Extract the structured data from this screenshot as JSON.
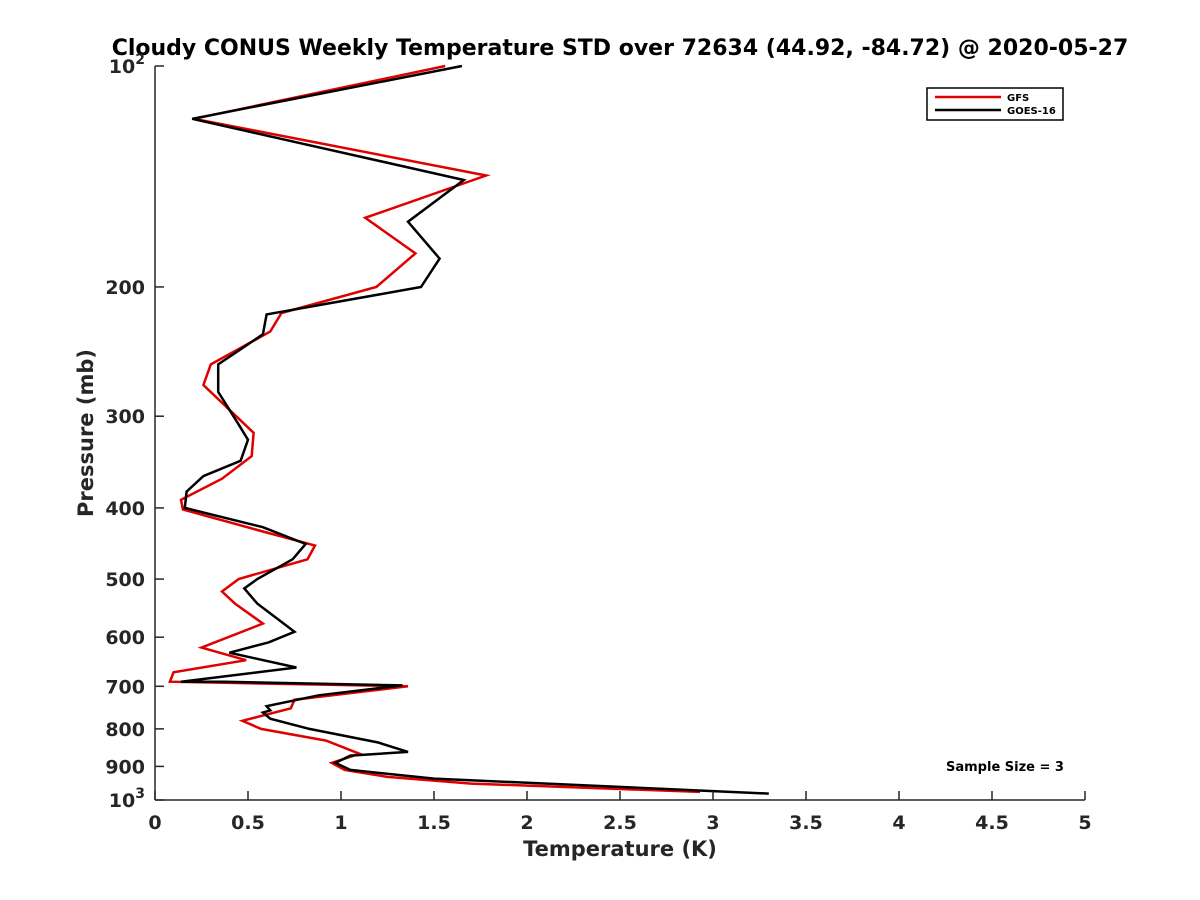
{
  "chart_data": {
    "type": "line",
    "title": "Cloudy CONUS Weekly Temperature STD over 72634 (44.92, -84.72) @ 2020-05-27",
    "xlabel": "Temperature (K)",
    "ylabel": "Pressure (mb)",
    "xlim": [
      0,
      5
    ],
    "ylim": [
      100,
      1000
    ],
    "y_scale": "log",
    "y_reversed": true,
    "xticks": [
      0,
      0.5,
      1,
      1.5,
      2,
      2.5,
      3,
      3.5,
      4,
      4.5,
      5
    ],
    "xtick_labels": [
      "0",
      "0.5",
      "1",
      "1.5",
      "2",
      "2.5",
      "3",
      "3.5",
      "4",
      "4.5",
      "5"
    ],
    "yticks": [
      {
        "value": 100,
        "base": "10",
        "exp": "2"
      },
      {
        "value": 200,
        "label": "200"
      },
      {
        "value": 300,
        "label": "300"
      },
      {
        "value": 400,
        "label": "400"
      },
      {
        "value": 500,
        "label": "500"
      },
      {
        "value": 600,
        "label": "600"
      },
      {
        "value": 700,
        "label": "700"
      },
      {
        "value": 800,
        "label": "800"
      },
      {
        "value": 900,
        "label": "900"
      },
      {
        "value": 1000,
        "base": "10",
        "exp": "3"
      }
    ],
    "legend_position": "top-right",
    "annotation": "Sample Size = 3",
    "series": [
      {
        "name": "GFS",
        "color": "#e00000",
        "x": [
          1.56,
          0.21,
          1.78,
          1.13,
          1.4,
          1.19,
          0.68,
          0.62,
          0.3,
          0.26,
          0.53,
          0.52,
          0.36,
          0.14,
          0.15,
          0.57,
          0.86,
          0.82,
          0.45,
          0.36,
          0.43,
          0.58,
          0.25,
          0.49,
          0.1,
          0.08,
          1.36,
          0.75,
          0.73,
          0.47,
          0.57,
          0.92,
          1.1,
          0.95,
          1.02,
          1.25,
          1.7,
          2.93
        ],
        "y": [
          100,
          118,
          141,
          161,
          180,
          200,
          217,
          230,
          255,
          272,
          316,
          340,
          365,
          390,
          402,
          430,
          450,
          470,
          500,
          520,
          540,
          575,
          620,
          645,
          670,
          690,
          700,
          730,
          750,
          780,
          800,
          830,
          865,
          890,
          910,
          930,
          950,
          975
        ]
      },
      {
        "name": "GOES-16",
        "color": "#000000",
        "x": [
          1.65,
          0.2,
          1.66,
          1.36,
          1.53,
          1.43,
          0.6,
          0.58,
          0.34,
          0.34,
          0.45,
          0.5,
          0.46,
          0.26,
          0.17,
          0.16,
          0.58,
          0.81,
          0.74,
          0.55,
          0.48,
          0.55,
          0.75,
          0.61,
          0.4,
          0.76,
          0.14,
          0.37,
          1.33,
          0.88,
          0.6,
          0.62,
          0.58,
          0.62,
          0.83,
          1.2,
          1.36,
          1.05,
          0.97,
          1.05,
          1.5,
          3.3
        ],
        "y": [
          100,
          118,
          143,
          163,
          183,
          200,
          218,
          232,
          255,
          278,
          308,
          323,
          345,
          362,
          380,
          400,
          425,
          448,
          470,
          500,
          515,
          540,
          590,
          610,
          630,
          660,
          690,
          690,
          698,
          720,
          745,
          755,
          760,
          775,
          800,
          835,
          860,
          870,
          890,
          910,
          935,
          980
        ]
      }
    ]
  }
}
